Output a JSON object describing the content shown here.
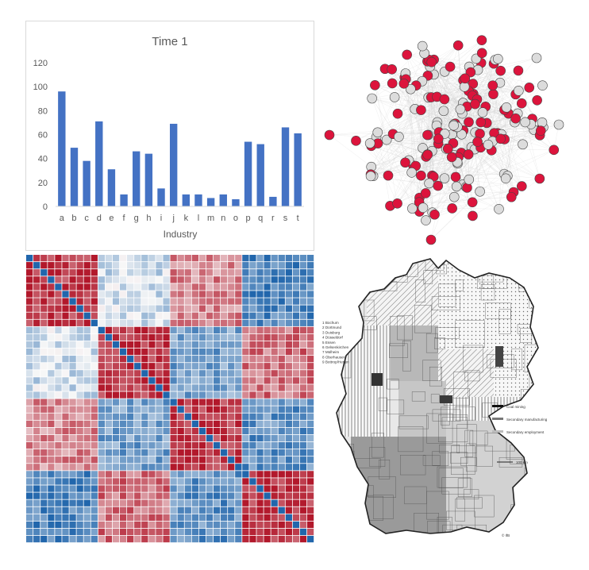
{
  "chart_data": [
    {
      "type": "bar",
      "title": "Time 1",
      "xlabel": "Industry",
      "ylabel": "",
      "ylim": [
        0,
        120
      ],
      "yticks": [
        0,
        20,
        40,
        60,
        80,
        100,
        120
      ],
      "categories": [
        "a",
        "b",
        "c",
        "d",
        "e",
        "f",
        "g",
        "h",
        "i",
        "j",
        "k",
        "l",
        "m",
        "n",
        "o",
        "p",
        "q",
        "r",
        "s",
        "t"
      ],
      "values": [
        96,
        49,
        38,
        71,
        31,
        10,
        46,
        44,
        15,
        69,
        10,
        10,
        7,
        10,
        6,
        54,
        52,
        8,
        66,
        61
      ],
      "bar_color": "#4472c4",
      "grid": false
    },
    {
      "type": "scatter",
      "subtype": "network-graph",
      "node_colors": [
        "#dc143c",
        "#dcdcdc"
      ],
      "edge_color": "#d0d0d0"
    },
    {
      "type": "heatmap",
      "colormap": [
        "#b2182b",
        "#f7f7f7",
        "#2166ac"
      ],
      "size": 40
    }
  ],
  "map": {
    "title": "",
    "legend_items": [
      "1 Bochum",
      "2 Dortmund",
      "3 Duisburg",
      "4 Düsseldorf",
      "5 Essen",
      "6 Gelsenkirchen",
      "7 Mülheim",
      "8 Oberhausen",
      "9 Bottrop/Herten"
    ],
    "key_items": [
      "Coal mining",
      "Secondary manufacturing",
      "Secondary employment"
    ],
    "scale_label": "100 km",
    "credit": "© IfB"
  }
}
